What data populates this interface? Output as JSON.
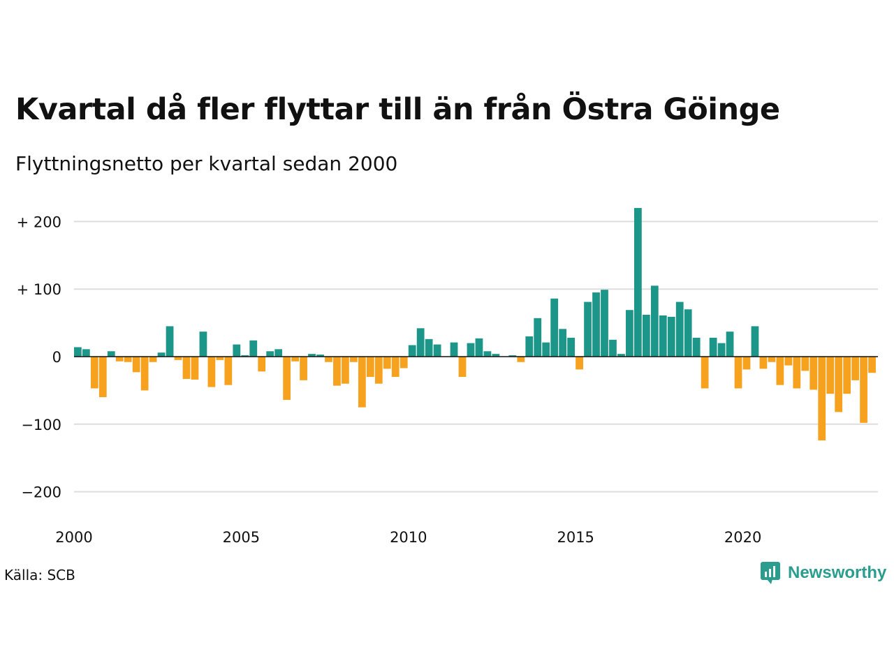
{
  "title": "Kvartal då fler flyttar till än från Östra Göinge",
  "subtitle": "Flyttningsnetto per kvartal sedan 2000",
  "source": "Källa: SCB",
  "brand": {
    "name": "Newsworthy",
    "icon": "newsworthy-logo-icon"
  },
  "colors": {
    "positive": "#1b9688",
    "negative": "#f6a21e",
    "grid": "#dddddd",
    "axis": "#111111"
  },
  "chart_data": {
    "type": "bar",
    "title": "Kvartal då fler flyttar till än från Östra Göinge",
    "subtitle": "Flyttningsnetto per kvartal sedan 2000",
    "xlabel": "",
    "ylabel": "",
    "ylim": [
      -215,
      225
    ],
    "grid": true,
    "legend": "none",
    "y_ticks": [
      {
        "value": 200,
        "label": "+ 200"
      },
      {
        "value": 100,
        "label": "+ 100"
      },
      {
        "value": 0,
        "label": "0"
      },
      {
        "value": -100,
        "label": "−100"
      },
      {
        "value": -200,
        "label": "−200"
      }
    ],
    "x_ticks": [
      {
        "value": 2000,
        "label": "2000"
      },
      {
        "value": 2005,
        "label": "2005"
      },
      {
        "value": 2010,
        "label": "2010"
      },
      {
        "value": 2015,
        "label": "2015"
      },
      {
        "value": 2020,
        "label": "2020"
      }
    ],
    "start_year": 2000,
    "values": [
      14,
      11,
      -47,
      -60,
      8,
      -7,
      -8,
      -23,
      -50,
      -8,
      6,
      45,
      -5,
      -33,
      -34,
      37,
      -45,
      -5,
      -42,
      18,
      2,
      24,
      -22,
      8,
      11,
      -64,
      -7,
      -35,
      4,
      3,
      -8,
      -43,
      -40,
      -8,
      -75,
      -30,
      -40,
      -18,
      -30,
      -17,
      17,
      42,
      26,
      18,
      0,
      21,
      -30,
      20,
      27,
      8,
      4,
      0,
      2,
      -8,
      30,
      57,
      21,
      86,
      41,
      28,
      -19,
      81,
      95,
      99,
      25,
      4,
      69,
      220,
      62,
      105,
      61,
      59,
      81,
      70,
      28,
      -47,
      28,
      20,
      37,
      -47,
      -19,
      45,
      -18,
      -8,
      -42,
      -13,
      -47,
      -21,
      -49,
      -124,
      -55,
      -82,
      -55,
      -35,
      -98,
      -24
    ]
  }
}
